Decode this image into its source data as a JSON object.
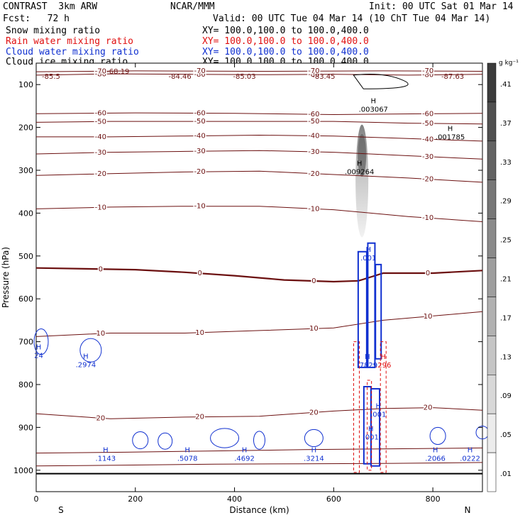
{
  "header": {
    "model": "CONTRAST  3km ARW",
    "center": "NCAR/MMM",
    "init": "Init: 00 UTC Sat 01 Mar 14",
    "fcst": "Fcst:   72 h",
    "valid": "Valid: 00 UTC Tue 04 Mar 14 (10 ChT Tue 04 Mar 14)"
  },
  "fields": [
    {
      "name": "Snow mixing ratio",
      "range": "XY= 100.0,100.0 to 100.0,400.0",
      "color": "#000000"
    },
    {
      "name": "Rain water mixing ratio",
      "range": "XY= 100.0,100.0 to 100.0,400.0",
      "color": "#e01010"
    },
    {
      "name": "Cloud water mixing ratio",
      "range": "XY= 100.0,100.0 to 100.0,400.0",
      "color": "#1030d0"
    },
    {
      "name": "Cloud ice mixing ratio",
      "range": "XY= 100.0,100.0 to 100.0,400.0",
      "color": "#000000"
    }
  ],
  "chart_data": {
    "type": "cross-section",
    "xlabel": "Distance (km)",
    "ylabel": "Pressure (hPa)",
    "xlim": [
      0,
      900
    ],
    "ylim": [
      1050,
      50
    ],
    "x_ticks": [
      0,
      200,
      400,
      600,
      800
    ],
    "y_ticks": [
      100,
      200,
      300,
      400,
      500,
      600,
      700,
      800,
      900,
      1000
    ],
    "x_end_labels": {
      "left": "S",
      "right": "N"
    },
    "colorbar": {
      "unit": "g kg⁻¹",
      "ticks": [
        ".41",
        ".37",
        ".33",
        ".29",
        ".25",
        ".21",
        ".17",
        ".13",
        ".09",
        ".05",
        ".01"
      ]
    },
    "temperature_contours": [
      {
        "value": -80,
        "p": [
          [
            0,
            78
          ],
          [
            150,
            75
          ],
          [
            300,
            76
          ],
          [
            450,
            77
          ],
          [
            600,
            76
          ],
          [
            750,
            78
          ],
          [
            900,
            76
          ]
        ]
      },
      {
        "value": -70,
        "p": [
          [
            0,
            70
          ],
          [
            200,
            68
          ],
          [
            450,
            69
          ],
          [
            700,
            68
          ],
          [
            900,
            69
          ]
        ]
      },
      {
        "value": -60,
        "p": [
          [
            0,
            168
          ],
          [
            200,
            166
          ],
          [
            400,
            167
          ],
          [
            600,
            170
          ],
          [
            800,
            168
          ],
          [
            900,
            167
          ]
        ]
      },
      {
        "value": -50,
        "p": [
          [
            0,
            188
          ],
          [
            150,
            186
          ],
          [
            300,
            186
          ],
          [
            450,
            186
          ],
          [
            600,
            186
          ],
          [
            750,
            190
          ],
          [
            900,
            192
          ]
        ]
      },
      {
        "value": -40,
        "p": [
          [
            0,
            222
          ],
          [
            150,
            222
          ],
          [
            300,
            220
          ],
          [
            450,
            218
          ],
          [
            600,
            220
          ],
          [
            750,
            226
          ],
          [
            900,
            232
          ]
        ]
      },
      {
        "value": -30,
        "p": [
          [
            0,
            262
          ],
          [
            150,
            258
          ],
          [
            300,
            256
          ],
          [
            450,
            254
          ],
          [
            600,
            258
          ],
          [
            750,
            266
          ],
          [
            900,
            274
          ]
        ]
      },
      {
        "value": -20,
        "p": [
          [
            0,
            312
          ],
          [
            150,
            308
          ],
          [
            300,
            304
          ],
          [
            450,
            302
          ],
          [
            600,
            310
          ],
          [
            750,
            318
          ],
          [
            900,
            328
          ]
        ]
      },
      {
        "value": -10,
        "p": [
          [
            0,
            390
          ],
          [
            150,
            386
          ],
          [
            300,
            384
          ],
          [
            450,
            384
          ],
          [
            600,
            392
          ],
          [
            750,
            408
          ],
          [
            900,
            420
          ]
        ]
      },
      {
        "value": 0,
        "p": [
          [
            0,
            528
          ],
          [
            100,
            530
          ],
          [
            200,
            532
          ],
          [
            300,
            538
          ],
          [
            400,
            546
          ],
          [
            500,
            556
          ],
          [
            600,
            560
          ],
          [
            650,
            558
          ],
          [
            700,
            540
          ],
          [
            800,
            540
          ],
          [
            900,
            534
          ]
        ]
      },
      {
        "value": 10,
        "p": [
          [
            0,
            688
          ],
          [
            150,
            680
          ],
          [
            300,
            680
          ],
          [
            450,
            674
          ],
          [
            600,
            668
          ],
          [
            700,
            650
          ],
          [
            800,
            640
          ],
          [
            900,
            630
          ]
        ]
      },
      {
        "value": 20,
        "p": [
          [
            0,
            868
          ],
          [
            150,
            880
          ],
          [
            300,
            876
          ],
          [
            450,
            874
          ],
          [
            600,
            862
          ],
          [
            700,
            856
          ],
          [
            800,
            854
          ],
          [
            900,
            860
          ]
        ]
      }
    ],
    "upper_labels": [
      "-85.5",
      "-68.19",
      "-84.46",
      "-85.03",
      "-83.45",
      "-87.63"
    ],
    "maxima_labels": [
      ".003067",
      ".001785",
      ".009264",
      ".001",
      ".7829",
      ".296",
      ".001",
      ".001",
      ".2974",
      "24",
      ".1143",
      ".5078",
      ".4692",
      ".3214",
      ".2066",
      ".0222"
    ]
  }
}
